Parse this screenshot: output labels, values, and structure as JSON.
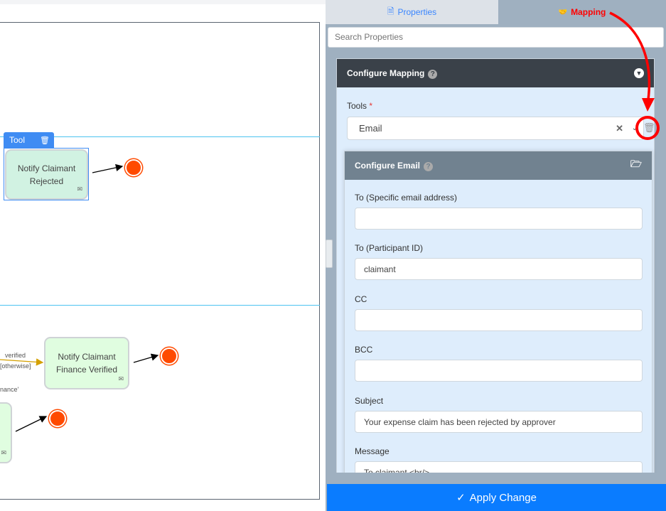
{
  "canvas": {
    "tool_badge": "Tool",
    "nodes": [
      {
        "label_line1": "Notify Claimant",
        "label_line2": "Rejected"
      },
      {
        "label_line1": "Notify Claimant",
        "label_line2": "Finance Verified"
      }
    ],
    "flow_labels": [
      "verified",
      "[otherwise]",
      "nance'"
    ]
  },
  "tabs": [
    {
      "label": "Properties",
      "icon": "document-icon",
      "active": false
    },
    {
      "label": "Mapping",
      "icon": "handshake-icon",
      "active": true
    }
  ],
  "search": {
    "placeholder": "Search Properties"
  },
  "configure_mapping": {
    "title": "Configure Mapping",
    "tools_label": "Tools",
    "required_mark": "*",
    "tools_value": "Email"
  },
  "configure_email": {
    "title": "Configure Email",
    "fields": [
      {
        "label": "To (Specific email address)",
        "value": ""
      },
      {
        "label": "To (Participant ID)",
        "value": "claimant"
      },
      {
        "label": "CC",
        "value": ""
      },
      {
        "label": "BCC",
        "value": ""
      },
      {
        "label": "Subject",
        "value": "Your expense claim has been rejected by approver"
      },
      {
        "label": "Message",
        "value": "To claimant <br/>"
      }
    ]
  },
  "apply_button": {
    "label": "Apply Change",
    "icon": "check-icon"
  },
  "colors": {
    "accent": "#0a7cff",
    "annotation": "#ff0000",
    "end_event": "#ff4a00"
  }
}
